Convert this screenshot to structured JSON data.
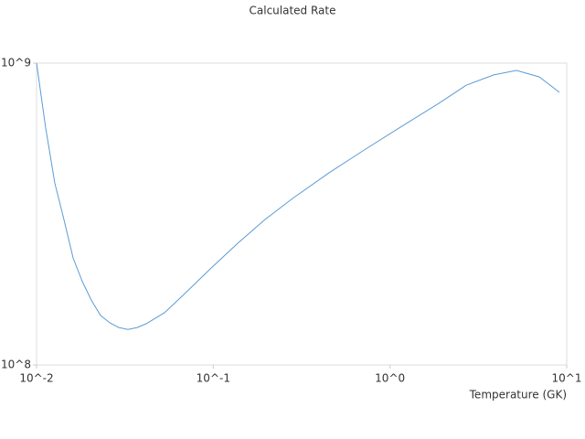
{
  "chart_data": {
    "type": "line",
    "title": "Calculated Rate",
    "x_label": "Temperature (GK)",
    "xlog": true,
    "ylog": true,
    "xlim": [
      0.01,
      10
    ],
    "ylim": [
      100000000,
      1000000000
    ],
    "xticks": [
      {
        "value": 0.01,
        "label": "10^-2"
      },
      {
        "value": 0.1,
        "label": "10^-1"
      },
      {
        "value": 1,
        "label": "10^0"
      },
      {
        "value": 10,
        "label": "10^1"
      }
    ],
    "yticks": [
      {
        "value": 100000000,
        "label": "10^8"
      },
      {
        "value": 1000000000,
        "label": "10^9"
      }
    ],
    "x": [
      0.01,
      0.01126,
      0.01269,
      0.01429,
      0.0161,
      0.01815,
      0.0204,
      0.023,
      0.0259,
      0.0292,
      0.0329,
      0.0371,
      0.0418,
      0.053,
      0.0673,
      0.0962,
      0.1375,
      0.196,
      0.281,
      0.452,
      0.728,
      1.17,
      1.89,
      2.7,
      3.86,
      5.2,
      7.0,
      9.1
    ],
    "series": [
      {
        "color": "#5b9bd5",
        "values": [
          1000000000,
          610000000,
          400000000,
          303000000,
          226000000,
          189000000,
          164000000,
          146000000,
          138000000,
          133000000,
          131000000,
          133000000,
          137000000,
          149000000,
          170000000,
          208000000,
          253000000,
          303000000,
          356000000,
          433000000,
          519000000,
          618000000,
          736000000,
          845000000,
          914000000,
          946000000,
          900000000,
          800000000
        ]
      }
    ]
  }
}
